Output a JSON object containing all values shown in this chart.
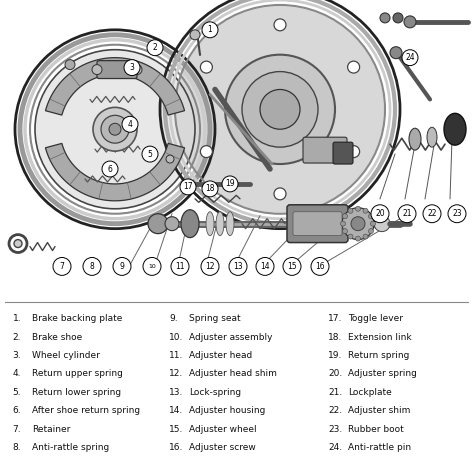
{
  "background_color": "#ffffff",
  "text_color": "#111111",
  "legend_col1": [
    [
      "1.",
      "Brake backing plate"
    ],
    [
      "2.",
      "Brake shoe"
    ],
    [
      "3.",
      "Wheel cylinder"
    ],
    [
      "4.",
      "Return upper spring"
    ],
    [
      "5.",
      "Return lower spring"
    ],
    [
      "6.",
      "After shoe return spring"
    ],
    [
      "7.",
      "Retainer"
    ],
    [
      "8.",
      "Anti-rattle spring"
    ]
  ],
  "legend_col2": [
    [
      "9.",
      "Spring seat"
    ],
    [
      "10.",
      "Adjuster assembly"
    ],
    [
      "11.",
      "Adjuster head"
    ],
    [
      "12.",
      "Adjuster head shim"
    ],
    [
      "13.",
      "Lock-spring"
    ],
    [
      "14.",
      "Adjuster housing"
    ],
    [
      "15.",
      "Adjuster wheel"
    ],
    [
      "16.",
      "Adjuster screw"
    ]
  ],
  "legend_col3": [
    [
      "17.",
      "Toggle lever"
    ],
    [
      "18.",
      "Extension link"
    ],
    [
      "19.",
      "Return spring"
    ],
    [
      "20.",
      "Adjuster spring"
    ],
    [
      "21.",
      "Lockplate"
    ],
    [
      "22.",
      "Adjuster shim"
    ],
    [
      "23.",
      "Rubber boot"
    ],
    [
      "24.",
      "Anti-rattle pin"
    ]
  ],
  "figsize": [
    4.74,
    4.66
  ],
  "dpi": 100
}
